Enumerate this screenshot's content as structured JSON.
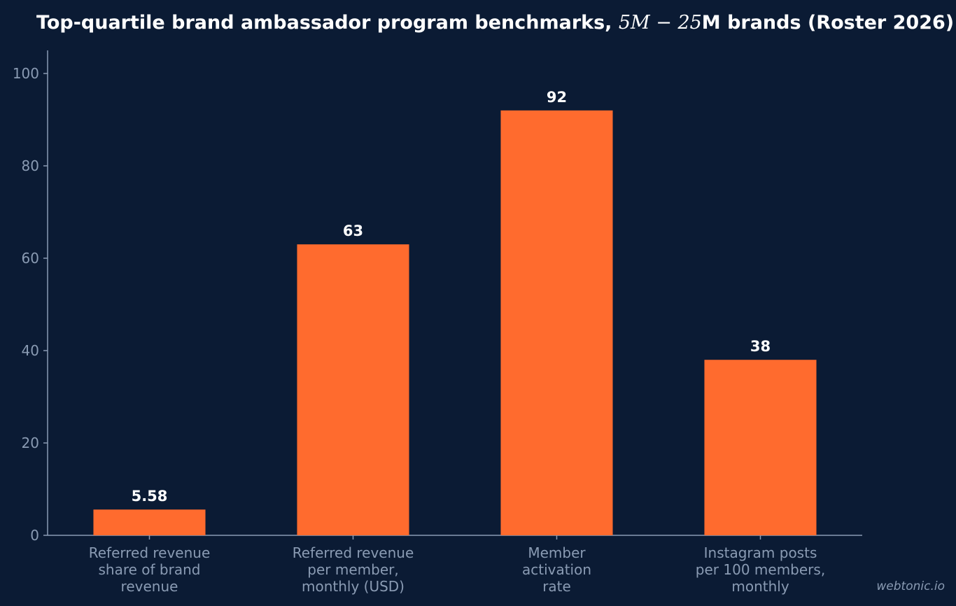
{
  "chart_data": {
    "type": "bar",
    "title_prefix": "Top-quartile brand ambassador program benchmarks, ",
    "title_math": "5M − 25",
    "title_suffix": "M brands (Roster 2026)",
    "categories": [
      "Referred revenue share of brand revenue",
      "Referred revenue per member, monthly (USD)",
      "Member activation rate",
      "Instagram posts per 100 members, monthly"
    ],
    "category_lines": [
      [
        "Referred revenue",
        "share of brand",
        "revenue"
      ],
      [
        "Referred revenue",
        "per member,",
        "monthly (USD)"
      ],
      [
        "Member",
        "activation",
        "rate"
      ],
      [
        "Instagram posts",
        "per 100 members,",
        "monthly"
      ]
    ],
    "values": [
      5.58,
      63,
      92,
      38
    ],
    "value_labels": [
      "5.58",
      "63",
      "92",
      "38"
    ],
    "yticks": [
      0,
      20,
      40,
      60,
      80,
      100
    ],
    "ytick_labels": [
      "0",
      "20",
      "40",
      "60",
      "80",
      "100"
    ],
    "ylim": [
      0,
      105
    ],
    "xlabel": "",
    "ylabel": "",
    "grid": false,
    "legend": "none",
    "bar_color": "#ff6b2e",
    "background_color": "#0b1b34",
    "watermark": "webtonic.io"
  }
}
